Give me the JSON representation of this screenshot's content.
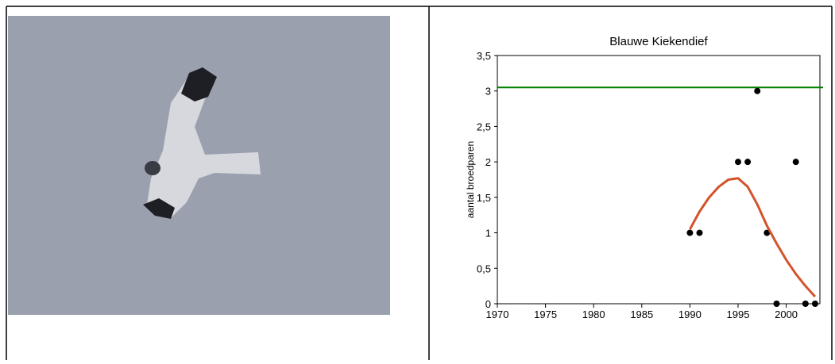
{
  "chart_data": {
    "type": "scatter",
    "title": "Blauwe Kiekendief",
    "y_label": "aantal broedparen",
    "xlim": [
      1970,
      2003.5
    ],
    "xticks": [
      1970,
      1975,
      1980,
      1985,
      1990,
      1995,
      2000
    ],
    "ylim": [
      0,
      3.5
    ],
    "yticks": [
      0,
      {
        "value": 0.5,
        "label": "0,5"
      },
      1,
      {
        "value": 1.5,
        "label": "1,5"
      },
      2,
      {
        "value": 2.5,
        "label": "2,5"
      },
      3,
      {
        "value": 3.5,
        "label": "3,5"
      }
    ],
    "series": [
      {
        "type": "scatter",
        "color": "#000000",
        "x": [
          1990,
          1991,
          1995,
          1996,
          1997,
          1998,
          1999,
          2001,
          2002,
          2003
        ],
        "values": [
          1,
          1,
          2,
          2,
          3,
          1,
          0,
          2,
          0,
          0
        ]
      },
      {
        "type": "line",
        "color": "#d2542c",
        "x": [
          1990,
          1991,
          1992,
          1993,
          1994,
          1995,
          1996,
          1997,
          1998,
          1999,
          2000,
          2001,
          2002,
          2003
        ],
        "values": [
          1.05,
          1.3,
          1.5,
          1.65,
          1.75,
          1.77,
          1.65,
          1.4,
          1.1,
          0.85,
          0.62,
          0.42,
          0.25,
          0.1
        ]
      }
    ],
    "reference_lines": [
      {
        "value": 3.05,
        "color": "#008000"
      }
    ]
  }
}
